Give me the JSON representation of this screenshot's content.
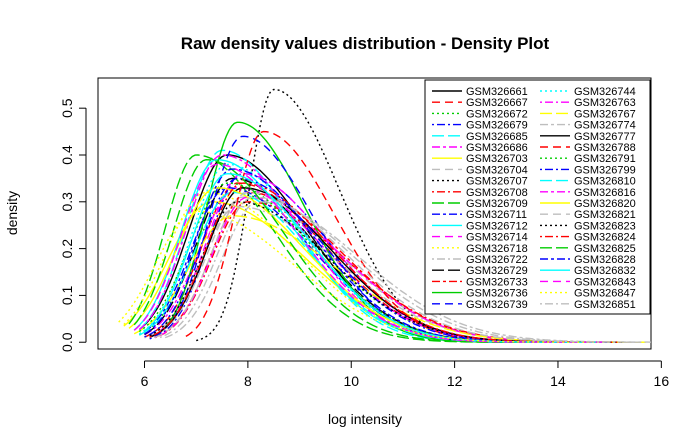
{
  "chart_data": {
    "type": "line",
    "title": "Raw density values distribution - Density Plot",
    "xlabel": "log intensity",
    "ylabel": "density",
    "xlim": [
      5.1,
      15.8
    ],
    "ylim": [
      0,
      0.55
    ],
    "x_ticks": [
      "6",
      "8",
      "10",
      "12",
      "14",
      "16"
    ],
    "y_ticks": [
      "0.0",
      "0.1",
      "0.2",
      "0.3",
      "0.4",
      "0.5"
    ],
    "legend_position": "top-right",
    "series": [
      {
        "name": "GSM326661",
        "color": "#000000",
        "dash": "solid",
        "peak_x": 7.6,
        "peak_y": 0.4,
        "left_width": 0.85,
        "right_width": 1.45,
        "min_x": 5.9,
        "max_x": 15.0
      },
      {
        "name": "GSM326667",
        "color": "#ff0000",
        "dash": "dashed",
        "peak_x": 7.8,
        "peak_y": 0.34,
        "left_width": 0.8,
        "right_width": 1.6,
        "min_x": 6.0,
        "max_x": 15.2
      },
      {
        "name": "GSM326672",
        "color": "#00cd00",
        "dash": "dotted",
        "peak_x": 7.7,
        "peak_y": 0.32,
        "left_width": 0.85,
        "right_width": 1.65,
        "min_x": 5.9,
        "max_x": 15.3
      },
      {
        "name": "GSM326679",
        "color": "#0000ff",
        "dash": "dotdash",
        "peak_x": 7.9,
        "peak_y": 0.36,
        "left_width": 0.75,
        "right_width": 1.55,
        "min_x": 6.1,
        "max_x": 15.1
      },
      {
        "name": "GSM326685",
        "color": "#00ffff",
        "dash": "longdash",
        "peak_x": 7.5,
        "peak_y": 0.41,
        "left_width": 0.8,
        "right_width": 1.35,
        "min_x": 5.9,
        "max_x": 14.5
      },
      {
        "name": "GSM326686",
        "color": "#ff00ff",
        "dash": "twodash",
        "peak_x": 7.8,
        "peak_y": 0.33,
        "left_width": 0.85,
        "right_width": 1.6,
        "min_x": 6.0,
        "max_x": 15.2
      },
      {
        "name": "GSM326703",
        "color": "#ffff00",
        "dash": "solid",
        "peak_x": 7.3,
        "peak_y": 0.3,
        "left_width": 0.95,
        "right_width": 1.7,
        "min_x": 5.6,
        "max_x": 15.3
      },
      {
        "name": "GSM326704",
        "color": "#bebebe",
        "dash": "dashed",
        "peak_x": 7.9,
        "peak_y": 0.31,
        "left_width": 0.8,
        "right_width": 1.75,
        "min_x": 6.1,
        "max_x": 15.5
      },
      {
        "name": "GSM326707",
        "color": "#000000",
        "dash": "dotted",
        "peak_x": 8.5,
        "peak_y": 0.54,
        "left_width": 0.55,
        "right_width": 1.2,
        "min_x": 7.0,
        "max_x": 15.0
      },
      {
        "name": "GSM326708",
        "color": "#ff0000",
        "dash": "dotdash",
        "peak_x": 8.0,
        "peak_y": 0.3,
        "left_width": 0.8,
        "right_width": 1.75,
        "min_x": 6.2,
        "max_x": 15.6
      },
      {
        "name": "GSM326709",
        "color": "#00cd00",
        "dash": "longdash",
        "peak_x": 7.0,
        "peak_y": 0.4,
        "left_width": 0.7,
        "right_width": 1.4,
        "min_x": 5.7,
        "max_x": 14.6
      },
      {
        "name": "GSM326711",
        "color": "#0000ff",
        "dash": "twodash",
        "peak_x": 7.6,
        "peak_y": 0.33,
        "left_width": 0.8,
        "right_width": 1.55,
        "min_x": 6.0,
        "max_x": 15.0
      },
      {
        "name": "GSM326712",
        "color": "#00ffff",
        "dash": "solid",
        "peak_x": 7.4,
        "peak_y": 0.39,
        "left_width": 0.8,
        "right_width": 1.45,
        "min_x": 5.8,
        "max_x": 14.8
      },
      {
        "name": "GSM326714",
        "color": "#ff00ff",
        "dash": "dashed",
        "peak_x": 7.9,
        "peak_y": 0.36,
        "left_width": 0.8,
        "right_width": 1.55,
        "min_x": 6.1,
        "max_x": 15.1
      },
      {
        "name": "GSM326718",
        "color": "#ffff00",
        "dash": "dotted",
        "peak_x": 7.2,
        "peak_y": 0.32,
        "left_width": 0.9,
        "right_width": 1.65,
        "min_x": 5.6,
        "max_x": 15.2
      },
      {
        "name": "GSM326722",
        "color": "#bebebe",
        "dash": "dotdash",
        "peak_x": 7.8,
        "peak_y": 0.29,
        "left_width": 0.8,
        "right_width": 1.8,
        "min_x": 6.0,
        "max_x": 15.6
      },
      {
        "name": "GSM326729",
        "color": "#000000",
        "dash": "longdash",
        "peak_x": 7.7,
        "peak_y": 0.35,
        "left_width": 0.8,
        "right_width": 1.5,
        "min_x": 6.0,
        "max_x": 15.0
      },
      {
        "name": "GSM326733",
        "color": "#ff0000",
        "dash": "twodash",
        "peak_x": 8.0,
        "peak_y": 0.32,
        "left_width": 0.8,
        "right_width": 1.7,
        "min_x": 6.2,
        "max_x": 15.4
      },
      {
        "name": "GSM326736",
        "color": "#00cd00",
        "dash": "solid",
        "peak_x": 7.8,
        "peak_y": 0.47,
        "left_width": 0.7,
        "right_width": 1.25,
        "min_x": 6.2,
        "max_x": 14.4
      },
      {
        "name": "GSM326739",
        "color": "#0000ff",
        "dash": "dashed",
        "peak_x": 7.9,
        "peak_y": 0.44,
        "left_width": 0.75,
        "right_width": 1.3,
        "min_x": 6.2,
        "max_x": 14.6
      },
      {
        "name": "GSM326744",
        "color": "#00ffff",
        "dash": "dotted",
        "peak_x": 7.6,
        "peak_y": 0.38,
        "left_width": 0.8,
        "right_width": 1.45,
        "min_x": 5.9,
        "max_x": 14.8
      },
      {
        "name": "GSM326763",
        "color": "#ff00ff",
        "dash": "dotdash",
        "peak_x": 8.0,
        "peak_y": 0.31,
        "left_width": 0.8,
        "right_width": 1.7,
        "min_x": 6.2,
        "max_x": 15.4
      },
      {
        "name": "GSM326767",
        "color": "#ffff00",
        "dash": "longdash",
        "peak_x": 7.7,
        "peak_y": 0.27,
        "left_width": 0.95,
        "right_width": 1.85,
        "min_x": 5.8,
        "max_x": 15.7
      },
      {
        "name": "GSM326774",
        "color": "#bebebe",
        "dash": "twodash",
        "peak_x": 8.2,
        "peak_y": 0.3,
        "left_width": 0.8,
        "right_width": 1.85,
        "min_x": 6.4,
        "max_x": 15.8
      },
      {
        "name": "GSM326777",
        "color": "#000000",
        "dash": "solid",
        "peak_x": 7.9,
        "peak_y": 0.33,
        "left_width": 0.8,
        "right_width": 1.6,
        "min_x": 6.1,
        "max_x": 15.2
      },
      {
        "name": "GSM326788",
        "color": "#ff0000",
        "dash": "dashed",
        "peak_x": 8.3,
        "peak_y": 0.45,
        "left_width": 0.65,
        "right_width": 1.3,
        "min_x": 6.8,
        "max_x": 14.8
      },
      {
        "name": "GSM326791",
        "color": "#00cd00",
        "dash": "dotted",
        "peak_x": 7.6,
        "peak_y": 0.34,
        "left_width": 0.85,
        "right_width": 1.55,
        "min_x": 5.9,
        "max_x": 15.0
      },
      {
        "name": "GSM326799",
        "color": "#0000ff",
        "dash": "dotdash",
        "peak_x": 7.8,
        "peak_y": 0.35,
        "left_width": 0.8,
        "right_width": 1.55,
        "min_x": 6.0,
        "max_x": 15.1
      },
      {
        "name": "GSM326810",
        "color": "#00ffff",
        "dash": "longdash",
        "peak_x": 7.7,
        "peak_y": 0.32,
        "left_width": 0.85,
        "right_width": 1.4,
        "min_x": 5.9,
        "max_x": 14.6
      },
      {
        "name": "GSM326816",
        "color": "#ff00ff",
        "dash": "twodash",
        "peak_x": 7.5,
        "peak_y": 0.4,
        "left_width": 0.8,
        "right_width": 1.45,
        "min_x": 5.9,
        "max_x": 14.9
      },
      {
        "name": "GSM326820",
        "color": "#ffff00",
        "dash": "solid",
        "peak_x": 7.4,
        "peak_y": 0.33,
        "left_width": 0.9,
        "right_width": 1.6,
        "min_x": 5.7,
        "max_x": 15.1
      },
      {
        "name": "GSM326821",
        "color": "#bebebe",
        "dash": "dashed",
        "peak_x": 8.0,
        "peak_y": 0.32,
        "left_width": 0.8,
        "right_width": 1.75,
        "min_x": 6.2,
        "max_x": 15.5
      },
      {
        "name": "GSM326823",
        "color": "#000000",
        "dash": "dotted",
        "peak_x": 7.8,
        "peak_y": 0.3,
        "left_width": 0.8,
        "right_width": 1.65,
        "min_x": 6.1,
        "max_x": 15.3
      },
      {
        "name": "GSM326824",
        "color": "#ff0000",
        "dash": "dotdash",
        "peak_x": 7.9,
        "peak_y": 0.34,
        "left_width": 0.8,
        "right_width": 1.6,
        "min_x": 6.1,
        "max_x": 15.2
      },
      {
        "name": "GSM326825",
        "color": "#00cd00",
        "dash": "longdash",
        "peak_x": 7.2,
        "peak_y": 0.39,
        "left_width": 0.75,
        "right_width": 1.4,
        "min_x": 5.8,
        "max_x": 14.7
      },
      {
        "name": "GSM326828",
        "color": "#0000ff",
        "dash": "twodash",
        "peak_x": 7.7,
        "peak_y": 0.37,
        "left_width": 0.8,
        "right_width": 1.5,
        "min_x": 6.0,
        "max_x": 15.0
      },
      {
        "name": "GSM326832",
        "color": "#00ffff",
        "dash": "solid",
        "peak_x": 7.6,
        "peak_y": 0.36,
        "left_width": 0.8,
        "right_width": 1.5,
        "min_x": 6.0,
        "max_x": 14.9
      },
      {
        "name": "GSM326843",
        "color": "#ff00ff",
        "dash": "dashed",
        "peak_x": 7.4,
        "peak_y": 0.38,
        "left_width": 0.8,
        "right_width": 1.5,
        "min_x": 5.8,
        "max_x": 14.9
      },
      {
        "name": "GSM326847",
        "color": "#ffff00",
        "dash": "dotted",
        "peak_x": 7.0,
        "peak_y": 0.28,
        "left_width": 0.9,
        "right_width": 1.75,
        "min_x": 5.5,
        "max_x": 15.3
      },
      {
        "name": "GSM326851",
        "color": "#bebebe",
        "dash": "dotdash",
        "peak_x": 8.1,
        "peak_y": 0.31,
        "left_width": 0.8,
        "right_width": 1.8,
        "min_x": 6.3,
        "max_x": 15.6
      }
    ]
  }
}
